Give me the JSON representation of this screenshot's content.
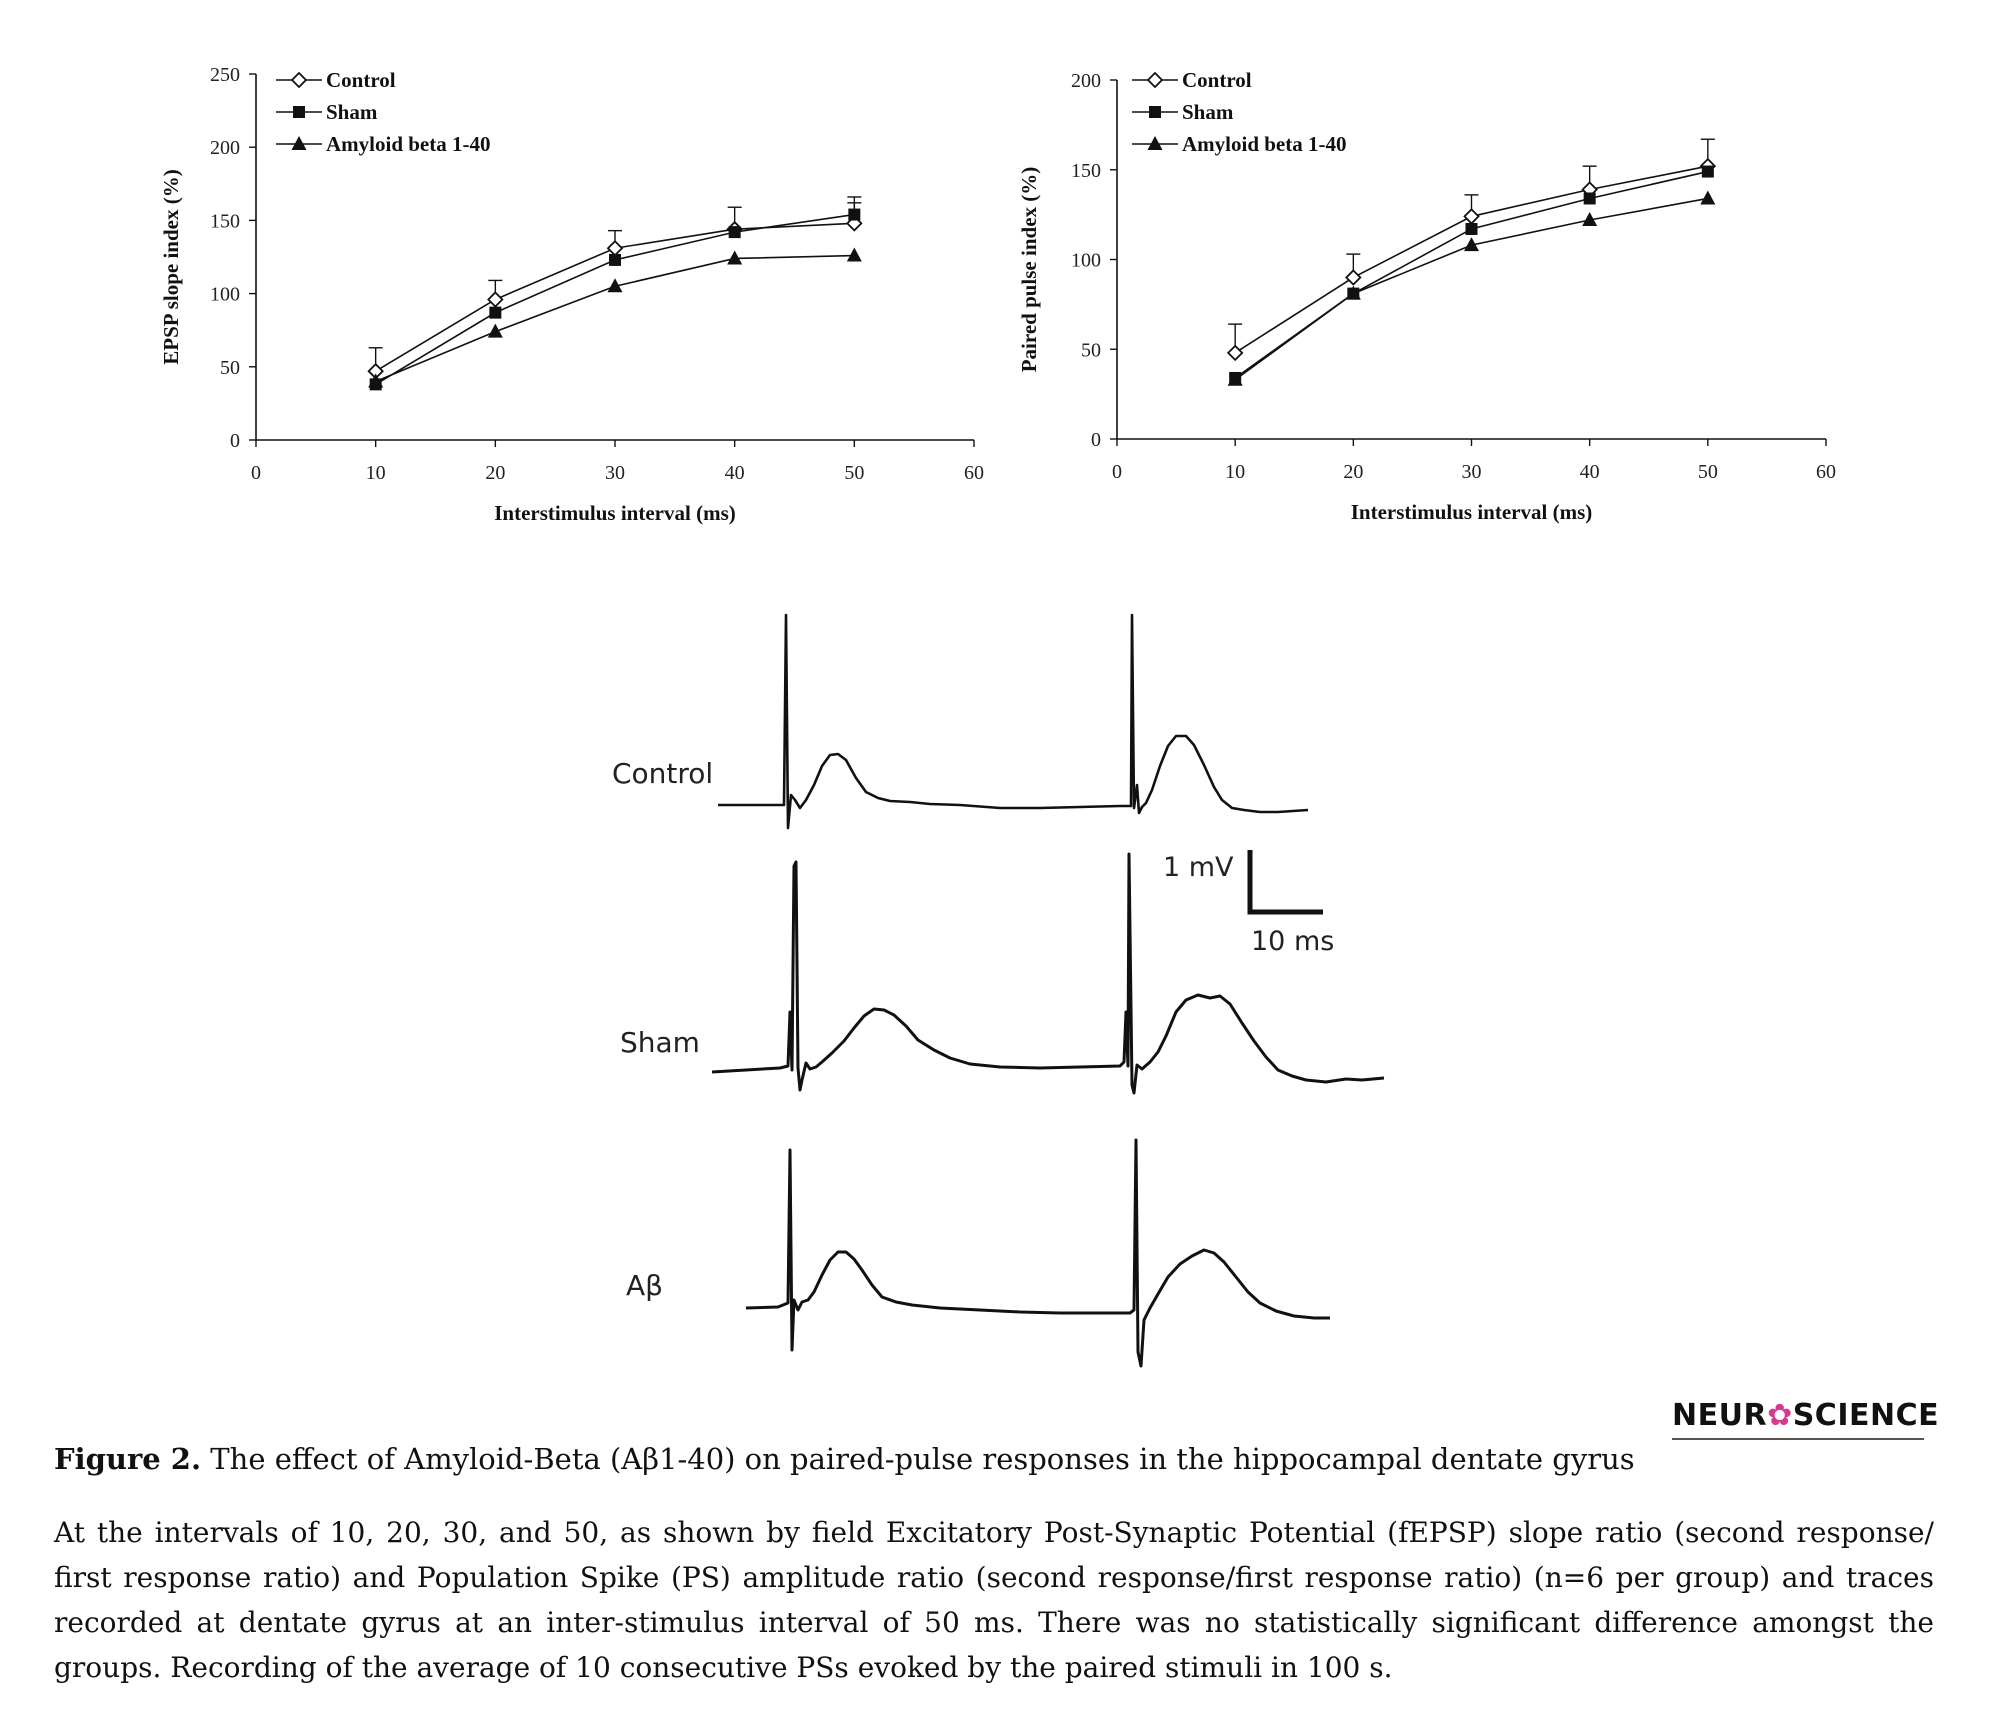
{
  "chart_data": [
    {
      "type": "line",
      "title": "",
      "xlabel": "Interstimulus interval (ms)",
      "ylabel": "EPSP slope index (%)",
      "xlim": [
        0,
        60
      ],
      "ylim": [
        0,
        250
      ],
      "xticks": [
        0,
        10,
        20,
        30,
        40,
        50,
        60
      ],
      "yticks": [
        0,
        50,
        100,
        150,
        200,
        250
      ],
      "legend_position": "top-left",
      "x": [
        10,
        20,
        30,
        40,
        50
      ],
      "series": [
        {
          "name": "Control",
          "marker": "open-diamond",
          "values": [
            47,
            96,
            131,
            144,
            148
          ],
          "error": [
            16,
            13,
            12,
            15,
            14
          ]
        },
        {
          "name": "Sham",
          "marker": "filled-square",
          "values": [
            38,
            87,
            123,
            142,
            154
          ],
          "error": [
            0,
            0,
            0,
            0,
            12
          ]
        },
        {
          "name": "Amyloid beta 1-40",
          "marker": "filled-triangle",
          "values": [
            40,
            74,
            105,
            124,
            126
          ],
          "error": [
            0,
            0,
            0,
            0,
            0
          ]
        }
      ]
    },
    {
      "type": "line",
      "title": "",
      "xlabel": "Interstimulus interval (ms)",
      "ylabel": "Paired pulse index (%)",
      "xlim": [
        0,
        60
      ],
      "ylim": [
        0,
        200
      ],
      "xticks": [
        0,
        10,
        20,
        30,
        40,
        50,
        60
      ],
      "yticks": [
        0,
        50,
        100,
        150,
        200
      ],
      "legend_position": "top-left",
      "x": [
        10,
        20,
        30,
        40,
        50
      ],
      "series": [
        {
          "name": "Control",
          "marker": "open-diamond",
          "values": [
            48,
            90,
            124,
            139,
            152
          ],
          "error": [
            16,
            13,
            12,
            13,
            15
          ]
        },
        {
          "name": "Sham",
          "marker": "filled-square",
          "values": [
            34,
            81,
            117,
            134,
            149
          ],
          "error": [
            0,
            0,
            0,
            0,
            0
          ]
        },
        {
          "name": "Amyloid beta 1-40",
          "marker": "filled-triangle",
          "values": [
            33,
            81,
            108,
            122,
            134
          ],
          "error": [
            0,
            0,
            0,
            0,
            0
          ]
        }
      ]
    }
  ],
  "traces": {
    "labels": [
      "Control",
      "Sham",
      "Aβ"
    ],
    "scale_bar": {
      "voltage": "1 mV",
      "time": "10 ms"
    }
  },
  "logo": {
    "before": "NEUR",
    "mark": "✿",
    "after": "SCIENCE"
  },
  "caption": {
    "figure_label": "Figure 2.",
    "title": "The effect of Amyloid-Beta (Aβ1-40) on paired-pulse responses in the hippocampal dentate gyrus",
    "body": "At the intervals of 10, 20, 30, and 50, as shown by field Excitatory Post-Synaptic Potential (fEPSP) slope ratio (second response/ first response ratio) and Population Spike (PS) amplitude ratio (second response/first response ratio) (n=6 per group) and traces recorded at dentate gyrus at an inter-stimulus interval of 50 ms. There was no statistically significant difference amongst the groups. Recording of the average of 10 consecutive PSs evoked by the paired stimuli in 100 s."
  },
  "colors": {
    "ink": "#111111",
    "marker_fill_open": "#ffffff"
  }
}
